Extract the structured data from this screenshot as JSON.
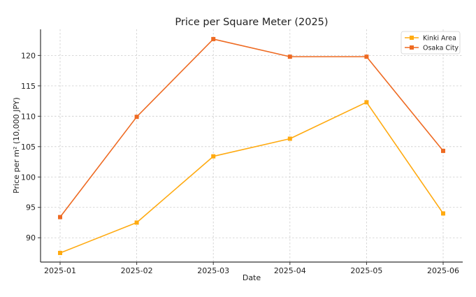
{
  "chart_data": {
    "type": "line",
    "title": "Price per Square Meter (2025)",
    "xlabel": "Date",
    "ylabel": "Price per m² (10,000 JPY)",
    "categories": [
      "2025-01",
      "2025-02",
      "2025-03",
      "2025-04",
      "2025-05",
      "2025-06"
    ],
    "ylim": [
      86,
      124.3
    ],
    "yticks": [
      90,
      95,
      100,
      105,
      110,
      115,
      120
    ],
    "grid": true,
    "legend_position": "top-right",
    "series": [
      {
        "name": "Kinki Area",
        "color": "#ffaa10",
        "marker": "square",
        "values": [
          87.5,
          92.5,
          103.4,
          106.3,
          112.3,
          94.0
        ]
      },
      {
        "name": "Osaka City",
        "color": "#ee6a22",
        "marker": "square",
        "values": [
          93.4,
          109.9,
          122.7,
          119.8,
          119.8,
          104.3
        ]
      }
    ]
  }
}
